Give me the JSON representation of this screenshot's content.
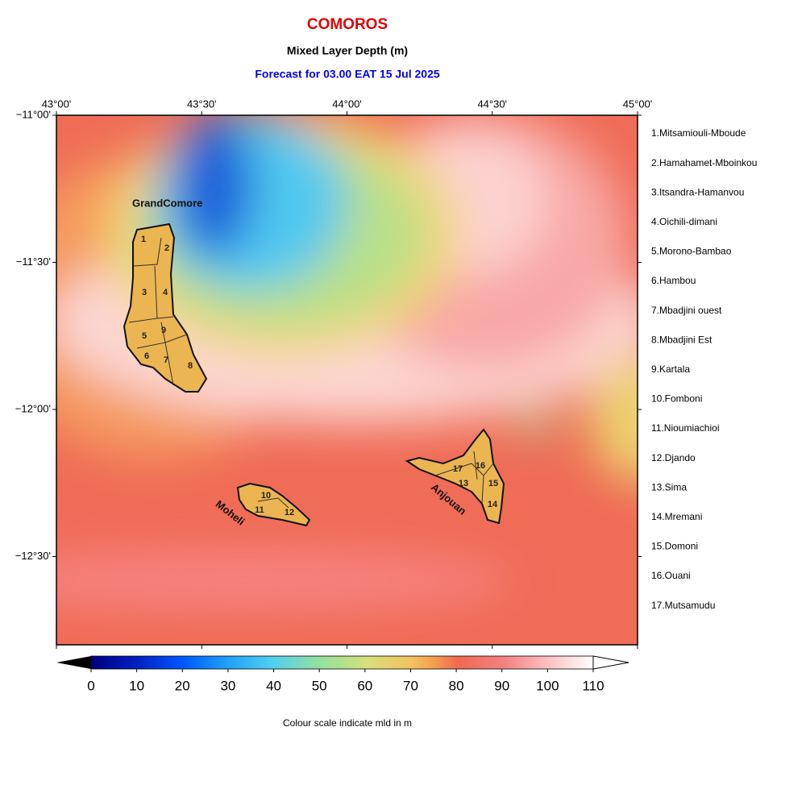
{
  "header": {
    "title": "COMOROS",
    "subtitle": "Mixed Layer Depth (m)",
    "forecast": "Forecast for  03.00 EAT 15 Jul 2025"
  },
  "map": {
    "lonlim": [
      43,
      45
    ],
    "latlim": [
      -12.8,
      -11
    ],
    "lon_ticks": [
      {
        "value": 43,
        "label": "43°00'"
      },
      {
        "value": 43.5,
        "label": "43°30'"
      },
      {
        "value": 44,
        "label": "44°00'"
      },
      {
        "value": 44.5,
        "label": "44°30'"
      },
      {
        "value": 45,
        "label": "45°00'"
      }
    ],
    "lat_ticks": [
      {
        "value": -11,
        "label": "−11°00'"
      },
      {
        "value": -11.5,
        "label": "−11°30'"
      },
      {
        "value": -12,
        "label": "−12°00'"
      },
      {
        "value": -12.5,
        "label": "−12°30'"
      }
    ],
    "islands": {
      "grand_comore": "GrandComore",
      "moheli": "Moheli",
      "anjouan": "Anjouan"
    },
    "region_numbers": [
      "1",
      "2",
      "3",
      "4",
      "5",
      "6",
      "7",
      "8",
      "9",
      "10",
      "11",
      "12",
      "13",
      "14",
      "15",
      "16",
      "17"
    ]
  },
  "legend": [
    "1.Mitsamiouli-Mboude",
    "2.Hamahamet-Mboinkou",
    "3.Itsandra-Hamanvou",
    "4.Oichili-dimani",
    "5.Morono-Bambao",
    "6.Hambou",
    "7.Mbadjini ouest",
    "8.Mbadjini Est",
    "9.Kartala",
    "10.Fomboni",
    "11.Nioumiachioi",
    "12.Djando",
    "13.Sima",
    "14.Mremani",
    "15.Domoni",
    "16.Ouani",
    "17.Mutsamudu"
  ],
  "colorbar": {
    "lim": [
      0,
      110
    ],
    "ticks": [
      0,
      10,
      20,
      30,
      40,
      50,
      60,
      70,
      80,
      90,
      100,
      110
    ],
    "caption": "Colour scale indicate mld in m"
  }
}
